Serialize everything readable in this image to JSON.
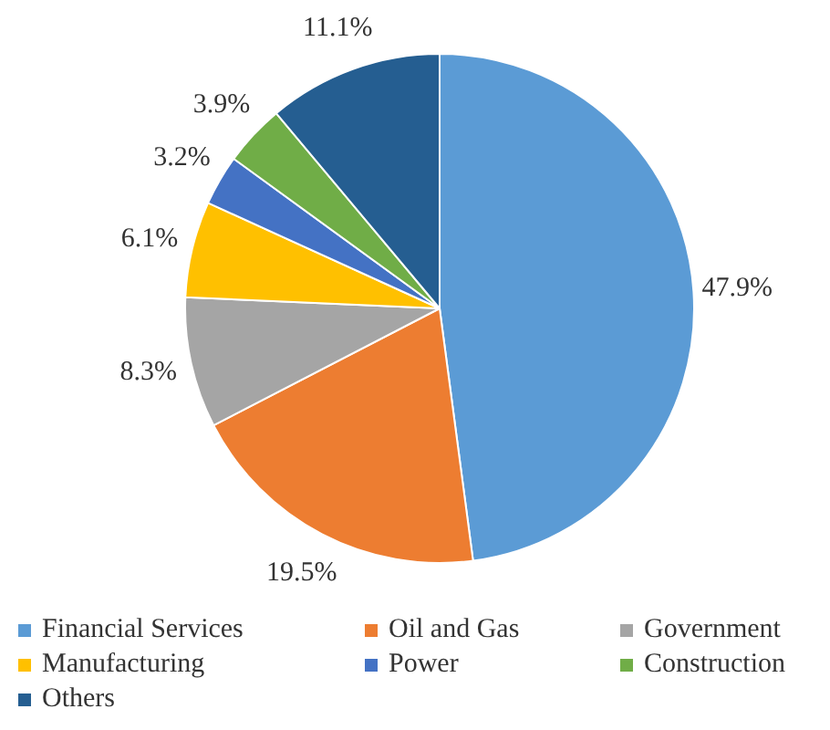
{
  "chart_data": {
    "type": "pie",
    "categories": [
      "Financial Services",
      "Oil and Gas",
      "Government",
      "Manufacturing",
      "Power",
      "Construction",
      "Others"
    ],
    "values": [
      47.9,
      19.5,
      8.3,
      6.1,
      3.2,
      3.9,
      11.1
    ],
    "colors": [
      "#5b9bd5",
      "#ed7d31",
      "#a5a5a5",
      "#ffc000",
      "#4472c4",
      "#70ad47",
      "#255e91"
    ],
    "value_labels": [
      "47.9%",
      "19.5%",
      "8.3%",
      "6.1%",
      "3.2%",
      "3.9%",
      "11.1%"
    ],
    "legend": "bottom"
  }
}
